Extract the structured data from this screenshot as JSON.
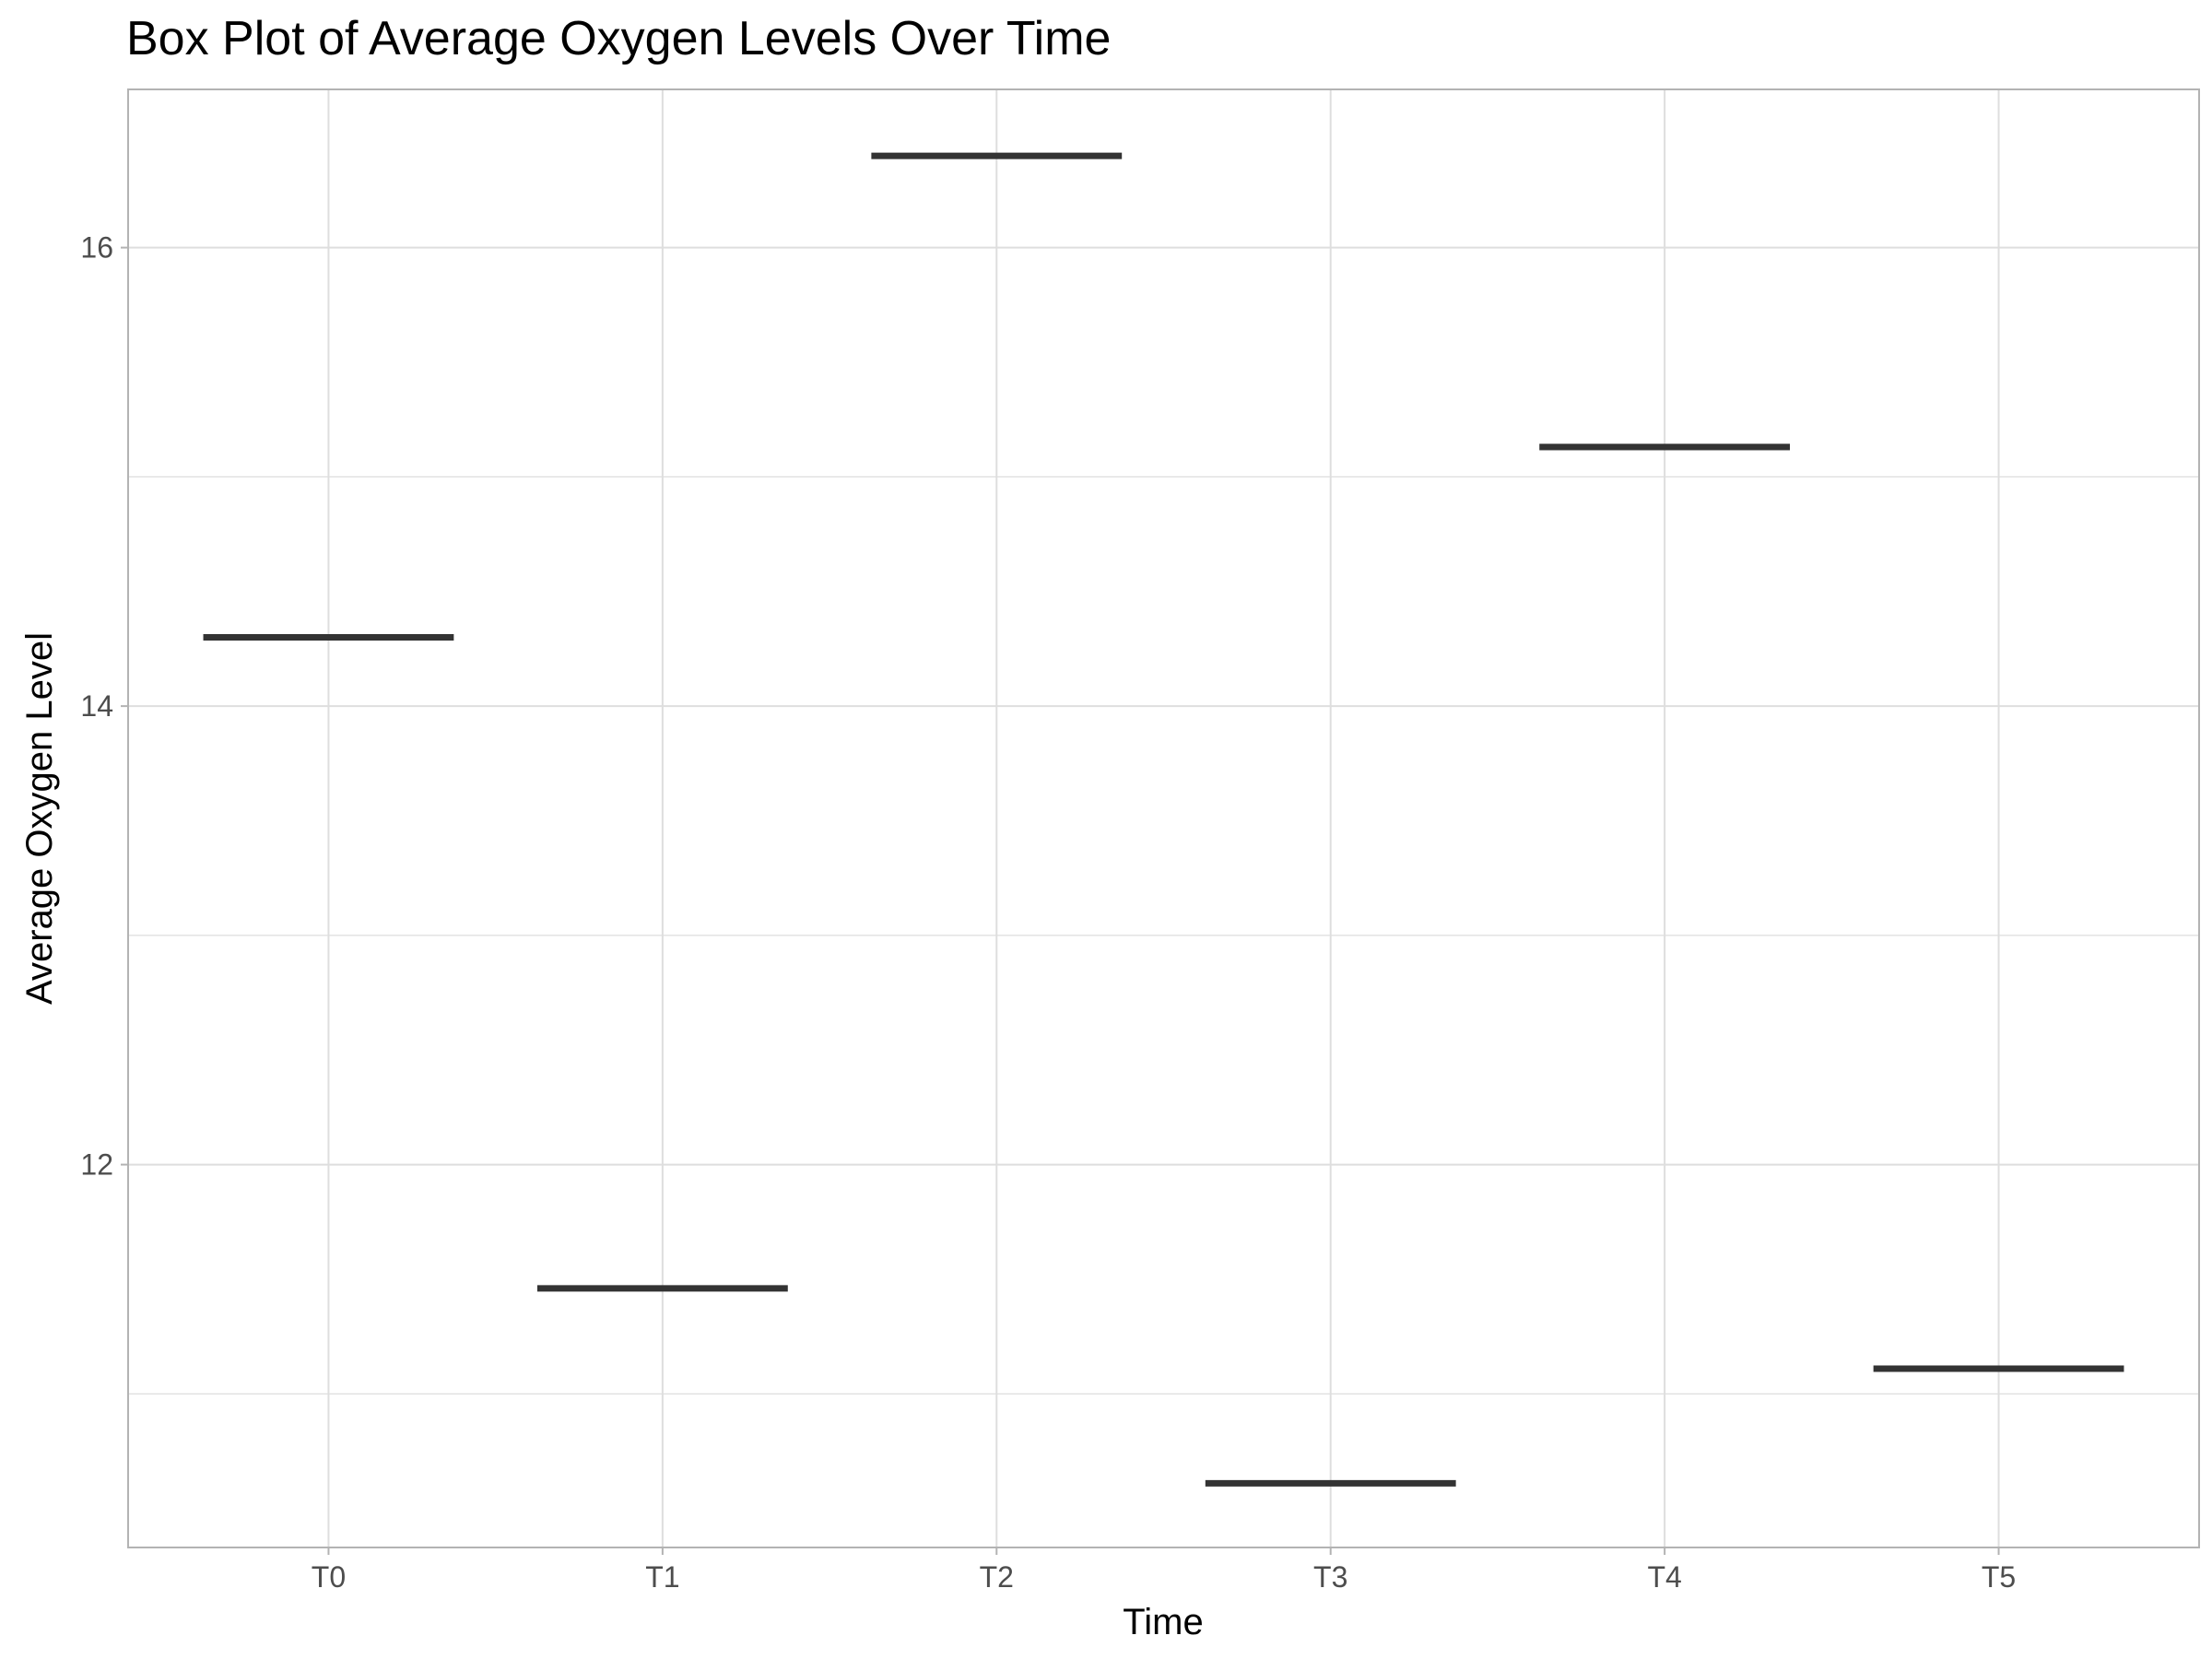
{
  "chart_data": {
    "type": "box",
    "title": "Box Plot of Average Oxygen Levels Over Time",
    "xlabel": "Time",
    "ylabel": "Average Oxygen Level",
    "categories": [
      "T0",
      "T1",
      "T2",
      "T3",
      "T4",
      "T5"
    ],
    "values": [
      14.3,
      11.46,
      16.4,
      10.61,
      15.13,
      11.11
    ],
    "ylim": [
      10.33,
      16.69
    ],
    "yticks": [
      12,
      14,
      16
    ],
    "y_minor_ticks": [
      11,
      13,
      15
    ],
    "grid": true,
    "colors": {
      "median_line": "#333333",
      "grid": "#dedede",
      "panel_border": "#b3b3b3",
      "tick_text": "#4d4d4d"
    }
  }
}
